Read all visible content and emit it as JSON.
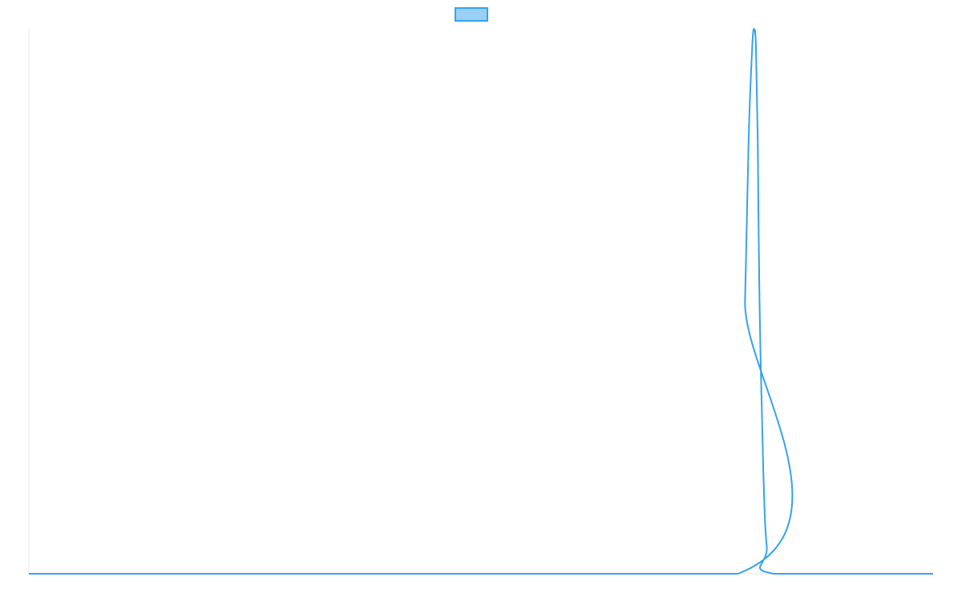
{
  "chart_data": {
    "type": "line",
    "title": "",
    "xlabel": "",
    "ylabel": "",
    "legend": {
      "placement": "top-center",
      "entries": [
        {
          "name": "",
          "color": "#36a2eb",
          "fill": "#9ad0f5"
        }
      ]
    },
    "grid": false,
    "xlim": [
      0,
      100
    ],
    "ylim": [
      0,
      1
    ],
    "series": [
      {
        "name": "",
        "color": "#36a2eb",
        "x": [
          0,
          78.4,
          79.2,
          79.6,
          80.0,
          80.2,
          80.4,
          80.6,
          80.8,
          81.2,
          81.6,
          82.4,
          100
        ],
        "y": [
          0,
          0,
          0.5,
          0.8,
          0.97,
          1.0,
          0.97,
          0.8,
          0.5,
          0.2,
          0.05,
          0,
          0
        ]
      }
    ]
  }
}
